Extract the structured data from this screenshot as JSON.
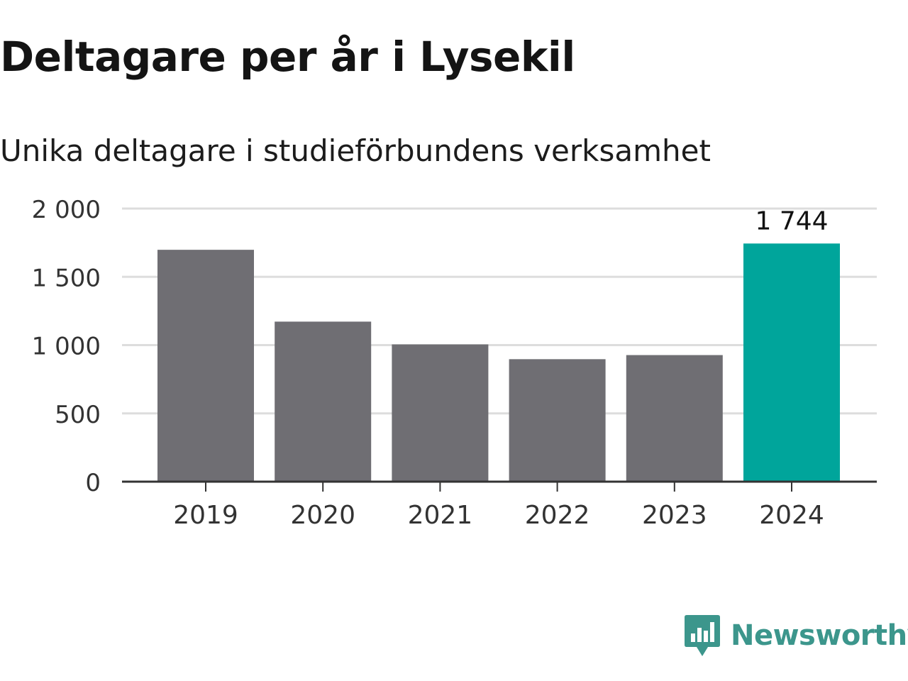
{
  "chart_data": {
    "type": "bar",
    "title": "Deltagare per år i Lysekil",
    "subtitle": "Unika deltagare i studieförbundens verksamhet",
    "categories": [
      "2019",
      "2020",
      "2021",
      "2022",
      "2023",
      "2024"
    ],
    "series": [
      {
        "values": [
          1698,
          1172,
          1005,
          897,
          927,
          1744
        ]
      }
    ],
    "highlight": {
      "category": "2024",
      "label": "1 744"
    },
    "ylim": [
      0,
      2000
    ],
    "yticks": [
      0,
      500,
      1000,
      1500,
      2000
    ],
    "ytick_labels": [
      "0",
      "500",
      "1 000",
      "1 500",
      "2 000"
    ],
    "grid": true,
    "legend": "none",
    "colors": {
      "bar": "#6f6e73",
      "highlight": "#00a59b",
      "grid": "#dddddd",
      "axis": "#333333",
      "text": "#333333"
    }
  },
  "branding": {
    "name": "Newsworthy",
    "color": "#3c968c",
    "icon": "bar-chart-speech-bubble-icon"
  }
}
